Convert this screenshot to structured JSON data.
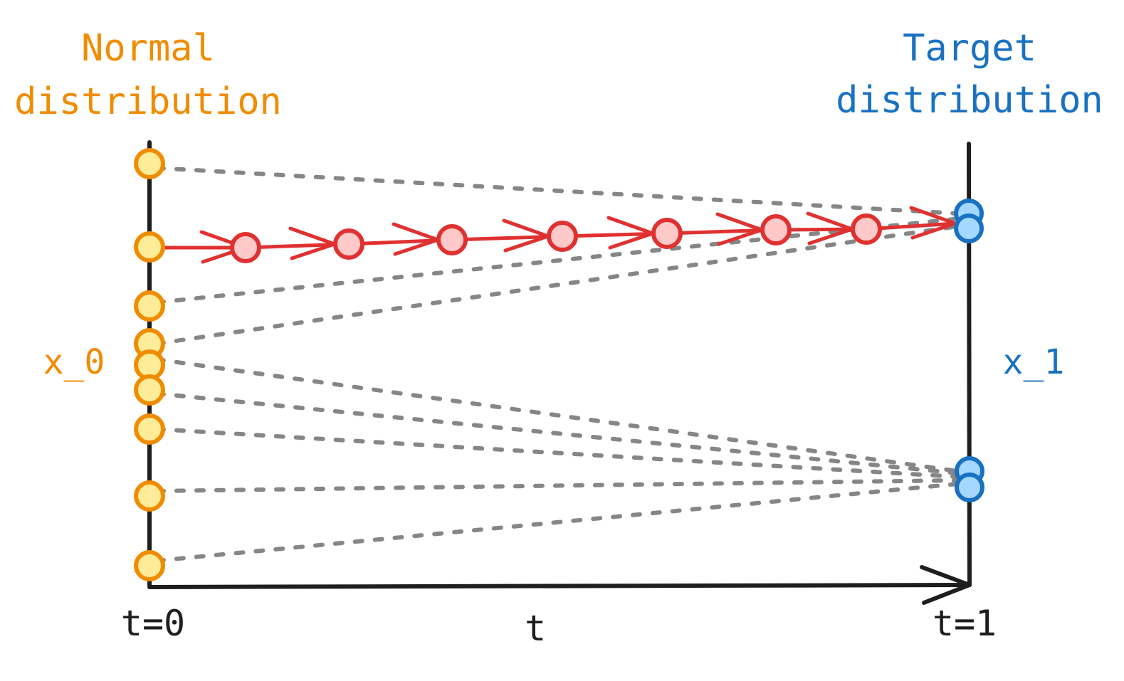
{
  "labels": {
    "source_title_line1": "Normal",
    "source_title_line2": "distribution",
    "target_title_line1": "Target",
    "target_title_line2": "distribution",
    "x0": "x_0",
    "x1": "x_1",
    "t0": "t=0",
    "t": "t",
    "t1": "t=1"
  },
  "colors": {
    "source": "#f08c00",
    "source_fill": "#ffec99",
    "target": "#1971c2",
    "target_fill": "#a5d8ff",
    "path": "#e03131",
    "path_fill": "#ffc9c9",
    "axis": "#1e1e1e",
    "coupling": "#868686"
  }
}
